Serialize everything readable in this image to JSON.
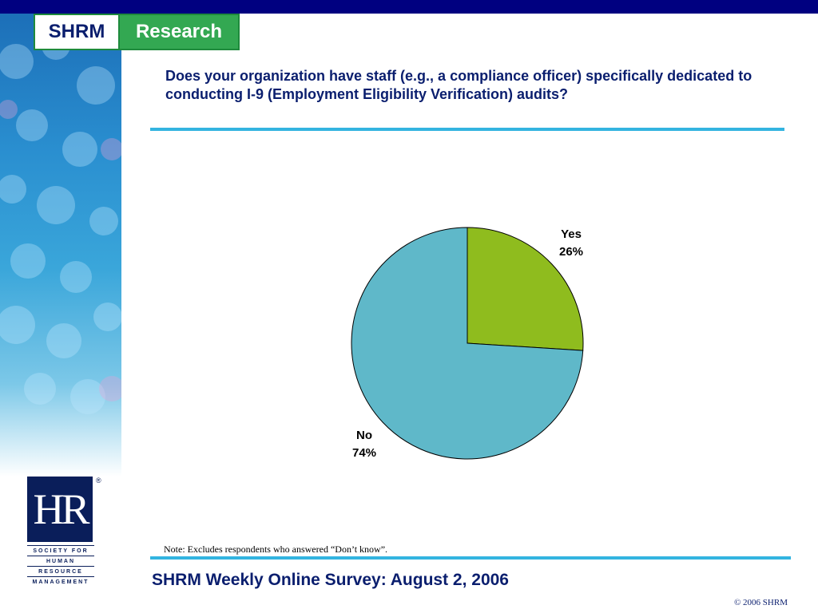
{
  "header": {
    "logo_left": "SHRM",
    "logo_right": "Research"
  },
  "question": "Does your organization have staff (e.g., a compliance officer) specifically dedicated to conducting I-9 (Employment Eligibility Verification) audits?",
  "chart_data": {
    "type": "pie",
    "categories": [
      "Yes",
      "No"
    ],
    "values": [
      26,
      74
    ],
    "labels": [
      "26%",
      "74%"
    ],
    "colors": [
      "#8fbc1e",
      "#5fb8c9"
    ],
    "start": "12 o'clock, clockwise"
  },
  "note": "Note: Excludes respondents  who answered “Don’t know”.",
  "footer": {
    "title": "SHRM Weekly Online Survey: August 2, 2006",
    "copyright": "© 2006 SHRM"
  },
  "hr_logo": {
    "mark": "HR",
    "registered": "®",
    "lines": [
      "SOCIETY FOR",
      "HUMAN",
      "RESOURCE",
      "MANAGEMENT"
    ]
  }
}
